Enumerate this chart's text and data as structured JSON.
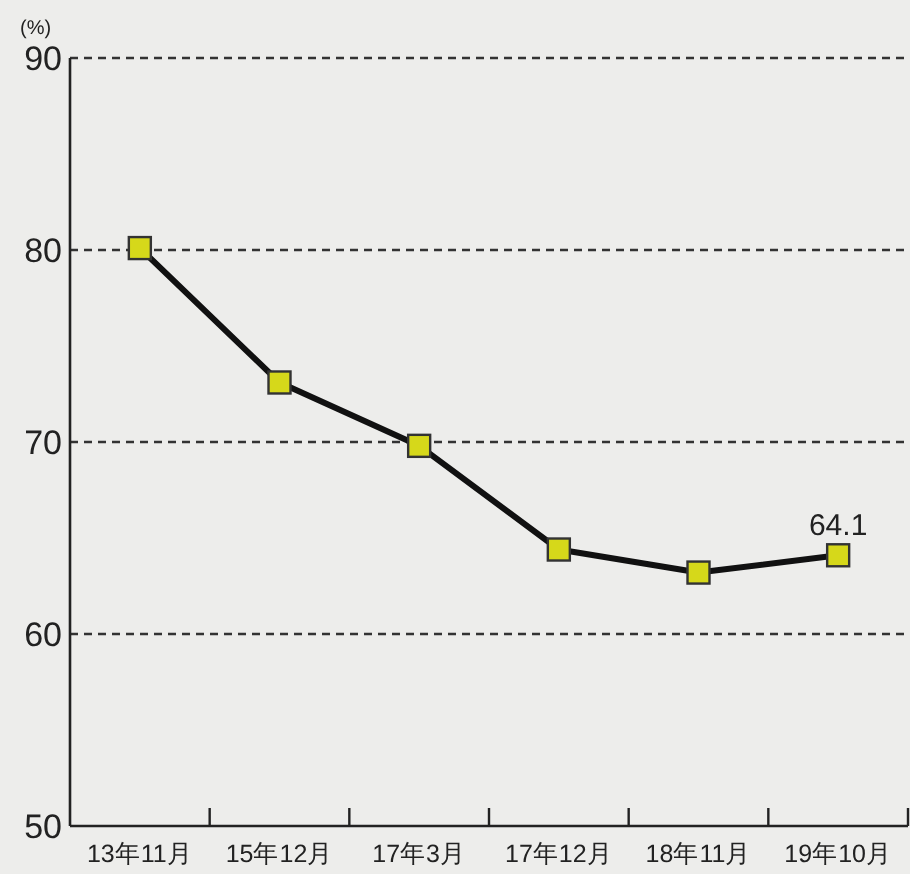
{
  "chart_data": {
    "type": "line",
    "ylabel": "(%)",
    "categories": [
      "13年11月",
      "15年12月",
      "17年3月",
      "17年12月",
      "18年11月",
      "19年10月"
    ],
    "series": [
      {
        "color": "#111111",
        "values": [
          80.1,
          73.1,
          69.8,
          64.4,
          63.2,
          64.1
        ],
        "value_labels": [
          null,
          null,
          null,
          null,
          null,
          "64.1"
        ]
      }
    ],
    "ylim": [
      50,
      90
    ],
    "yticks": [
      50,
      60,
      70,
      80,
      90
    ],
    "grid": "y",
    "marker": "square",
    "line_style": "solid"
  }
}
